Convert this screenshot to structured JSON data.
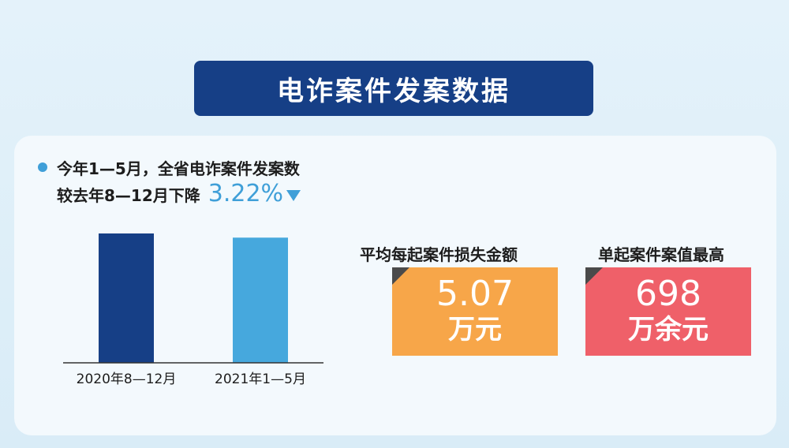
{
  "title": "电诈案件发案数据",
  "summary": {
    "line1": "今年1—5月，全省电诈案件发案数",
    "line2": "较去年8—12月下降",
    "change": "3.22%"
  },
  "chart_data": {
    "type": "bar",
    "categories": [
      "2020年8—12月",
      "2021年1—5月"
    ],
    "values": [
      100,
      96.78
    ],
    "colors": [
      "#163f86",
      "#46a8dd"
    ],
    "title": "",
    "xlabel": "",
    "ylabel": ""
  },
  "stats": [
    {
      "title": "平均每起案件损失金额",
      "value": "5.07",
      "unit": "万元",
      "color": "#f7a649"
    },
    {
      "title": "单起案件案值最高",
      "value": "698",
      "unit": "万余元",
      "color": "#ef6069"
    }
  ]
}
